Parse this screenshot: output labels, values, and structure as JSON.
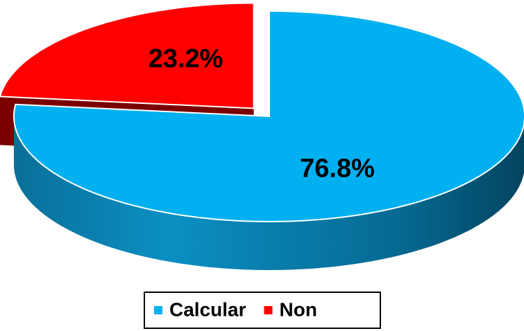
{
  "chart_data": {
    "type": "pie",
    "categories": [
      "Calcular",
      "Non"
    ],
    "values": [
      76.8,
      23.2
    ],
    "value_labels": [
      "76.8%",
      "23.2%"
    ],
    "colors": [
      "#00b0f0",
      "#ff0000"
    ],
    "legend": "bottom"
  }
}
